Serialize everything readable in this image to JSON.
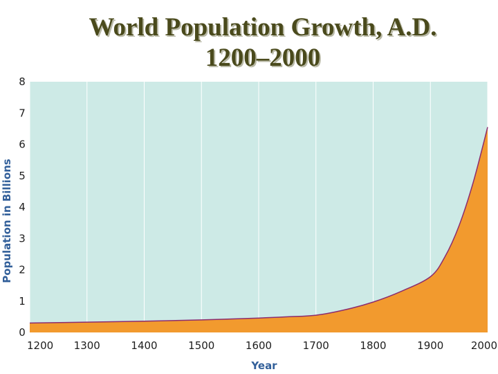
{
  "title_line1": "World Population Growth, A.D.",
  "title_line2": "1200–2000",
  "colors": {
    "plot_background": "#cdeae6",
    "area_fill": "#f29a2e",
    "line": "#8b2c6e",
    "grid": "#ffffff",
    "axis_label": "#33609a"
  },
  "chart_data": {
    "type": "area",
    "title": "World Population Growth, A.D. 1200–2000",
    "xlabel": "Year",
    "ylabel": "Population in Billions",
    "xlim": [
      1200,
      2000
    ],
    "ylim": [
      0,
      8
    ],
    "x_ticks": [
      "1200",
      "1300",
      "1400",
      "1500",
      "1600",
      "1700",
      "1800",
      "1900",
      "2000"
    ],
    "y_ticks": [
      "0",
      "1",
      "2",
      "3",
      "4",
      "5",
      "6",
      "7",
      "8"
    ],
    "grid": true,
    "series": [
      {
        "x": [
          1200,
          1300,
          1400,
          1500,
          1600,
          1650,
          1700,
          1750,
          1800,
          1850,
          1900,
          1925,
          1950,
          1975,
          2000
        ],
        "y": [
          0.3,
          0.33,
          0.36,
          0.4,
          0.46,
          0.5,
          0.55,
          0.72,
          0.97,
          1.32,
          1.78,
          2.4,
          3.4,
          4.8,
          6.55
        ]
      }
    ]
  }
}
